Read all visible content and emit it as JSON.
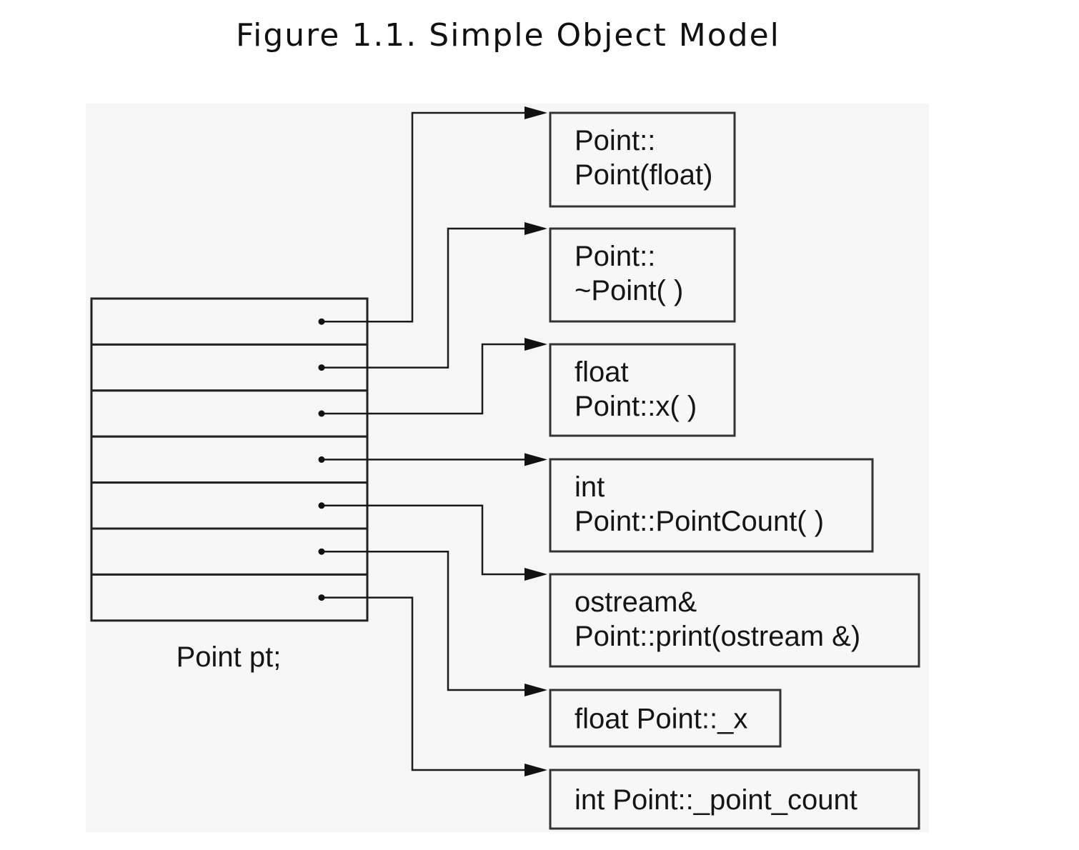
{
  "title": "Figure 1.1. Simple Object Model",
  "object_label": "Point pt;",
  "slot_count": 7,
  "members": [
    {
      "lines": [
        "Point::",
        "Point(float)"
      ],
      "slot": 0
    },
    {
      "lines": [
        "Point::",
        "~Point( )"
      ],
      "slot": 1
    },
    {
      "lines": [
        "float",
        "Point::x( )"
      ],
      "slot": 2
    },
    {
      "lines": [
        "int",
        "Point::PointCount( )"
      ],
      "slot": 3
    },
    {
      "lines": [
        "ostream&",
        "Point::print(ostream &)"
      ],
      "slot": 4
    },
    {
      "lines": [
        "float Point::_x"
      ],
      "slot": 5
    },
    {
      "lines": [
        "int Point::_point_count"
      ],
      "slot": 6
    }
  ]
}
